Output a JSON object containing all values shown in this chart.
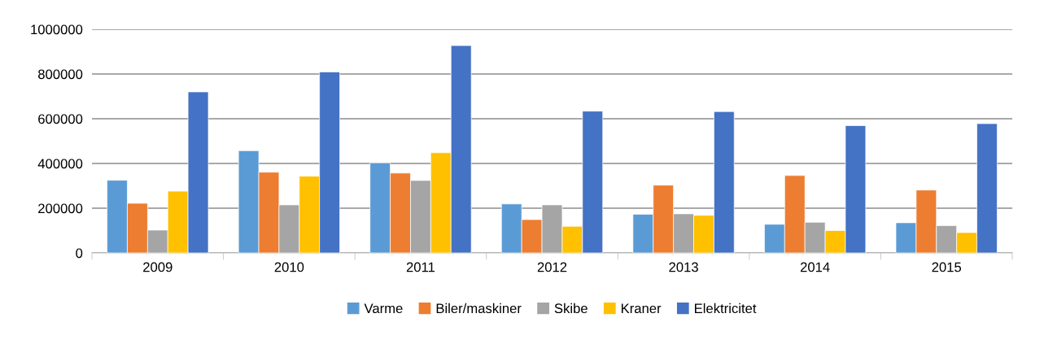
{
  "chart_data": {
    "type": "bar",
    "categories": [
      "2009",
      "2010",
      "2011",
      "2012",
      "2013",
      "2014",
      "2015"
    ],
    "series": [
      {
        "name": "Varme",
        "color": "#5b9bd5",
        "values": [
          325000,
          457000,
          403000,
          219000,
          173000,
          128000,
          135000
        ]
      },
      {
        "name": "Biler/maskiner",
        "color": "#ed7d31",
        "values": [
          222000,
          361000,
          357000,
          149000,
          303000,
          346000,
          281000
        ]
      },
      {
        "name": "Skibe",
        "color": "#a5a5a5",
        "values": [
          102000,
          215000,
          324000,
          215000,
          175000,
          137000,
          122000
        ]
      },
      {
        "name": "Kraner",
        "color": "#ffc000",
        "values": [
          276000,
          343000,
          448000,
          119000,
          168000,
          100000,
          91000
        ]
      },
      {
        "name": "Elektricitet",
        "color": "#4472c4",
        "values": [
          720000,
          809000,
          927000,
          634000,
          632000,
          569000,
          578000
        ]
      }
    ],
    "ylim": [
      0,
      1000000
    ],
    "yticks": [
      0,
      200000,
      400000,
      600000,
      800000,
      1000000
    ],
    "grid": "y",
    "legend": "bottom"
  }
}
